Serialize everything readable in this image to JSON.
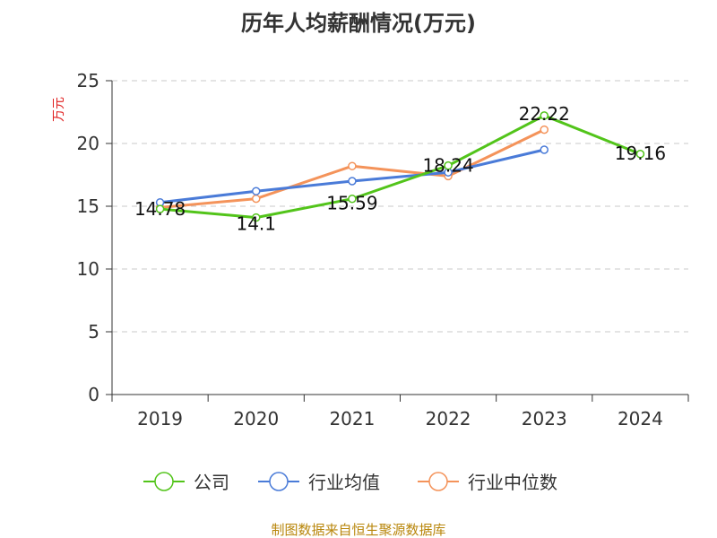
{
  "chart_data": {
    "type": "line",
    "title": "历年人均薪酬情况(万元)",
    "ylabel": "万元",
    "xlabel": "",
    "categories": [
      "2019",
      "2020",
      "2021",
      "2022",
      "2023",
      "2024"
    ],
    "ylim": [
      0,
      25
    ],
    "yticks": [
      0,
      5,
      10,
      15,
      20,
      25
    ],
    "grid": true,
    "legend_position": "bottom",
    "series": [
      {
        "name": "公司",
        "color": "#52c41a",
        "values": [
          14.78,
          14.1,
          15.59,
          18.24,
          22.22,
          19.16
        ],
        "labels": [
          "14.78",
          "14.1",
          "15.59",
          "18.24",
          "22.22",
          "19.16"
        ]
      },
      {
        "name": "行业均值",
        "color": "#4a7bd8",
        "values": [
          15.3,
          16.2,
          17.0,
          17.7,
          19.5,
          null
        ]
      },
      {
        "name": "行业中位数",
        "color": "#f4935a",
        "values": [
          14.9,
          15.6,
          18.2,
          17.4,
          21.1,
          null
        ]
      }
    ]
  },
  "source": "制图数据来自恒生聚源数据库"
}
